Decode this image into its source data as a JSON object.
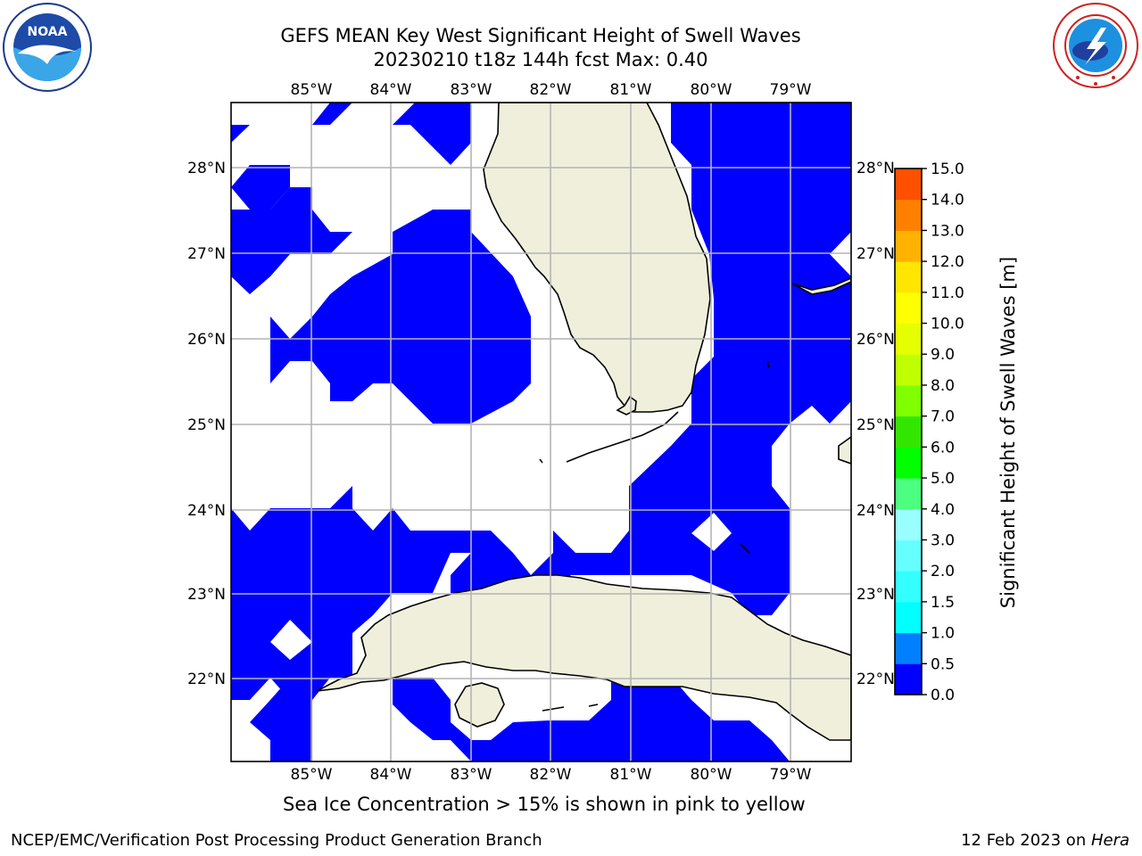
{
  "header": {
    "title_line1": "GEFS MEAN Key West Significant Height of Swell Waves",
    "title_line2": "20230210 t18z 144h fcst   Max: 0.40"
  },
  "logos": {
    "left": {
      "name": "noaa-logo",
      "text": "NOAA"
    },
    "right": {
      "name": "nws-logo"
    }
  },
  "map": {
    "lon_labels": [
      "85°W",
      "84°W",
      "83°W",
      "82°W",
      "81°W",
      "80°W",
      "79°W"
    ],
    "lat_labels": [
      "28°N",
      "27°N",
      "26°N",
      "25°N",
      "24°N",
      "23°N",
      "22°N"
    ],
    "colors": {
      "ocean_field": "#0000ff",
      "land": "#efefdc",
      "grid": "#b4b4b4",
      "coast": "#000000"
    }
  },
  "colorbar": {
    "label": "Significant Height of Swell Waves [m]",
    "ticks": [
      "15.0",
      "14.0",
      "13.0",
      "12.0",
      "11.0",
      "10.0",
      "9.0",
      "8.0",
      "7.0",
      "6.0",
      "5.0",
      "4.0",
      "3.0",
      "2.0",
      "1.5",
      "1.0",
      "0.5",
      "0.0"
    ],
    "colors": [
      "#0000ff",
      "#0080ff",
      "#00ffff",
      "#33ffff",
      "#66ffff",
      "#99ffff",
      "#4cff80",
      "#00ff00",
      "#33e600",
      "#80ff00",
      "#bfff00",
      "#e6ff00",
      "#ffff00",
      "#ffe600",
      "#ffb300",
      "#ff8000",
      "#ff5000",
      "#ff2000",
      "#ff0000"
    ]
  },
  "caption": "Sea Ice Concentration > 15% is shown in pink to yellow",
  "footer": {
    "left": "NCEP/EMC/Verification Post Processing Product Generation Branch",
    "right_prefix": "12 Feb 2023 on ",
    "right_system": "Hera"
  }
}
